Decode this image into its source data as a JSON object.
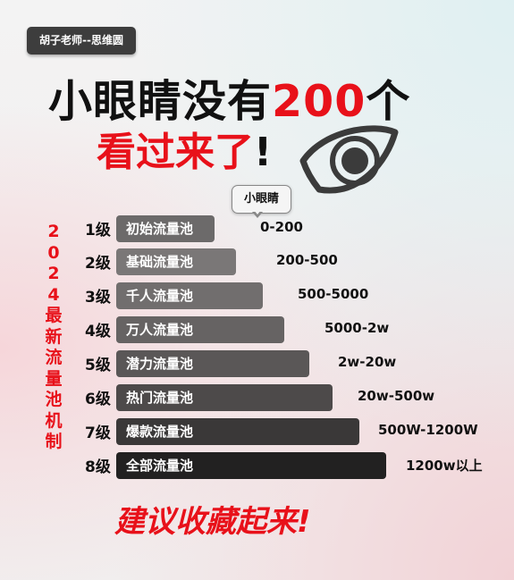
{
  "badge": "胡子老师--思维圆",
  "headline": {
    "line1_prefix": "小眼睛没有",
    "line1_number": "200",
    "line1_suffix": "个",
    "line2_red": "看过来了",
    "line2_mark": "!"
  },
  "bubble_label": "小眼睛",
  "side_title": [
    "2",
    "0",
    "2",
    "4",
    "最",
    "新",
    "流",
    "量",
    "池",
    "机",
    "制"
  ],
  "levels": [
    {
      "level": "1级",
      "name": "初始流量池",
      "range": "0-200",
      "color": "#6c6a6a"
    },
    {
      "level": "2级",
      "name": "基础流量池",
      "range": "200-500",
      "color": "#7a7777"
    },
    {
      "level": "3级",
      "name": "千人流量池",
      "range": "500-5000",
      "color": "#716e6e"
    },
    {
      "level": "4级",
      "name": "万人流量池",
      "range": "5000-2w",
      "color": "#666363"
    },
    {
      "level": "5级",
      "name": "潜力流量池",
      "range": "2w-20w",
      "color": "#5a5757"
    },
    {
      "level": "6级",
      "name": "热门流量池",
      "range": "20w-500w",
      "color": "#4d4a4a"
    },
    {
      "level": "7级",
      "name": "爆款流量池",
      "range": "500W-1200W",
      "color": "#3a3838"
    },
    {
      "level": "8级",
      "name": "全部流量池",
      "range": "1200w以上",
      "color": "#222121"
    }
  ],
  "footer": "建议收藏起来!"
}
